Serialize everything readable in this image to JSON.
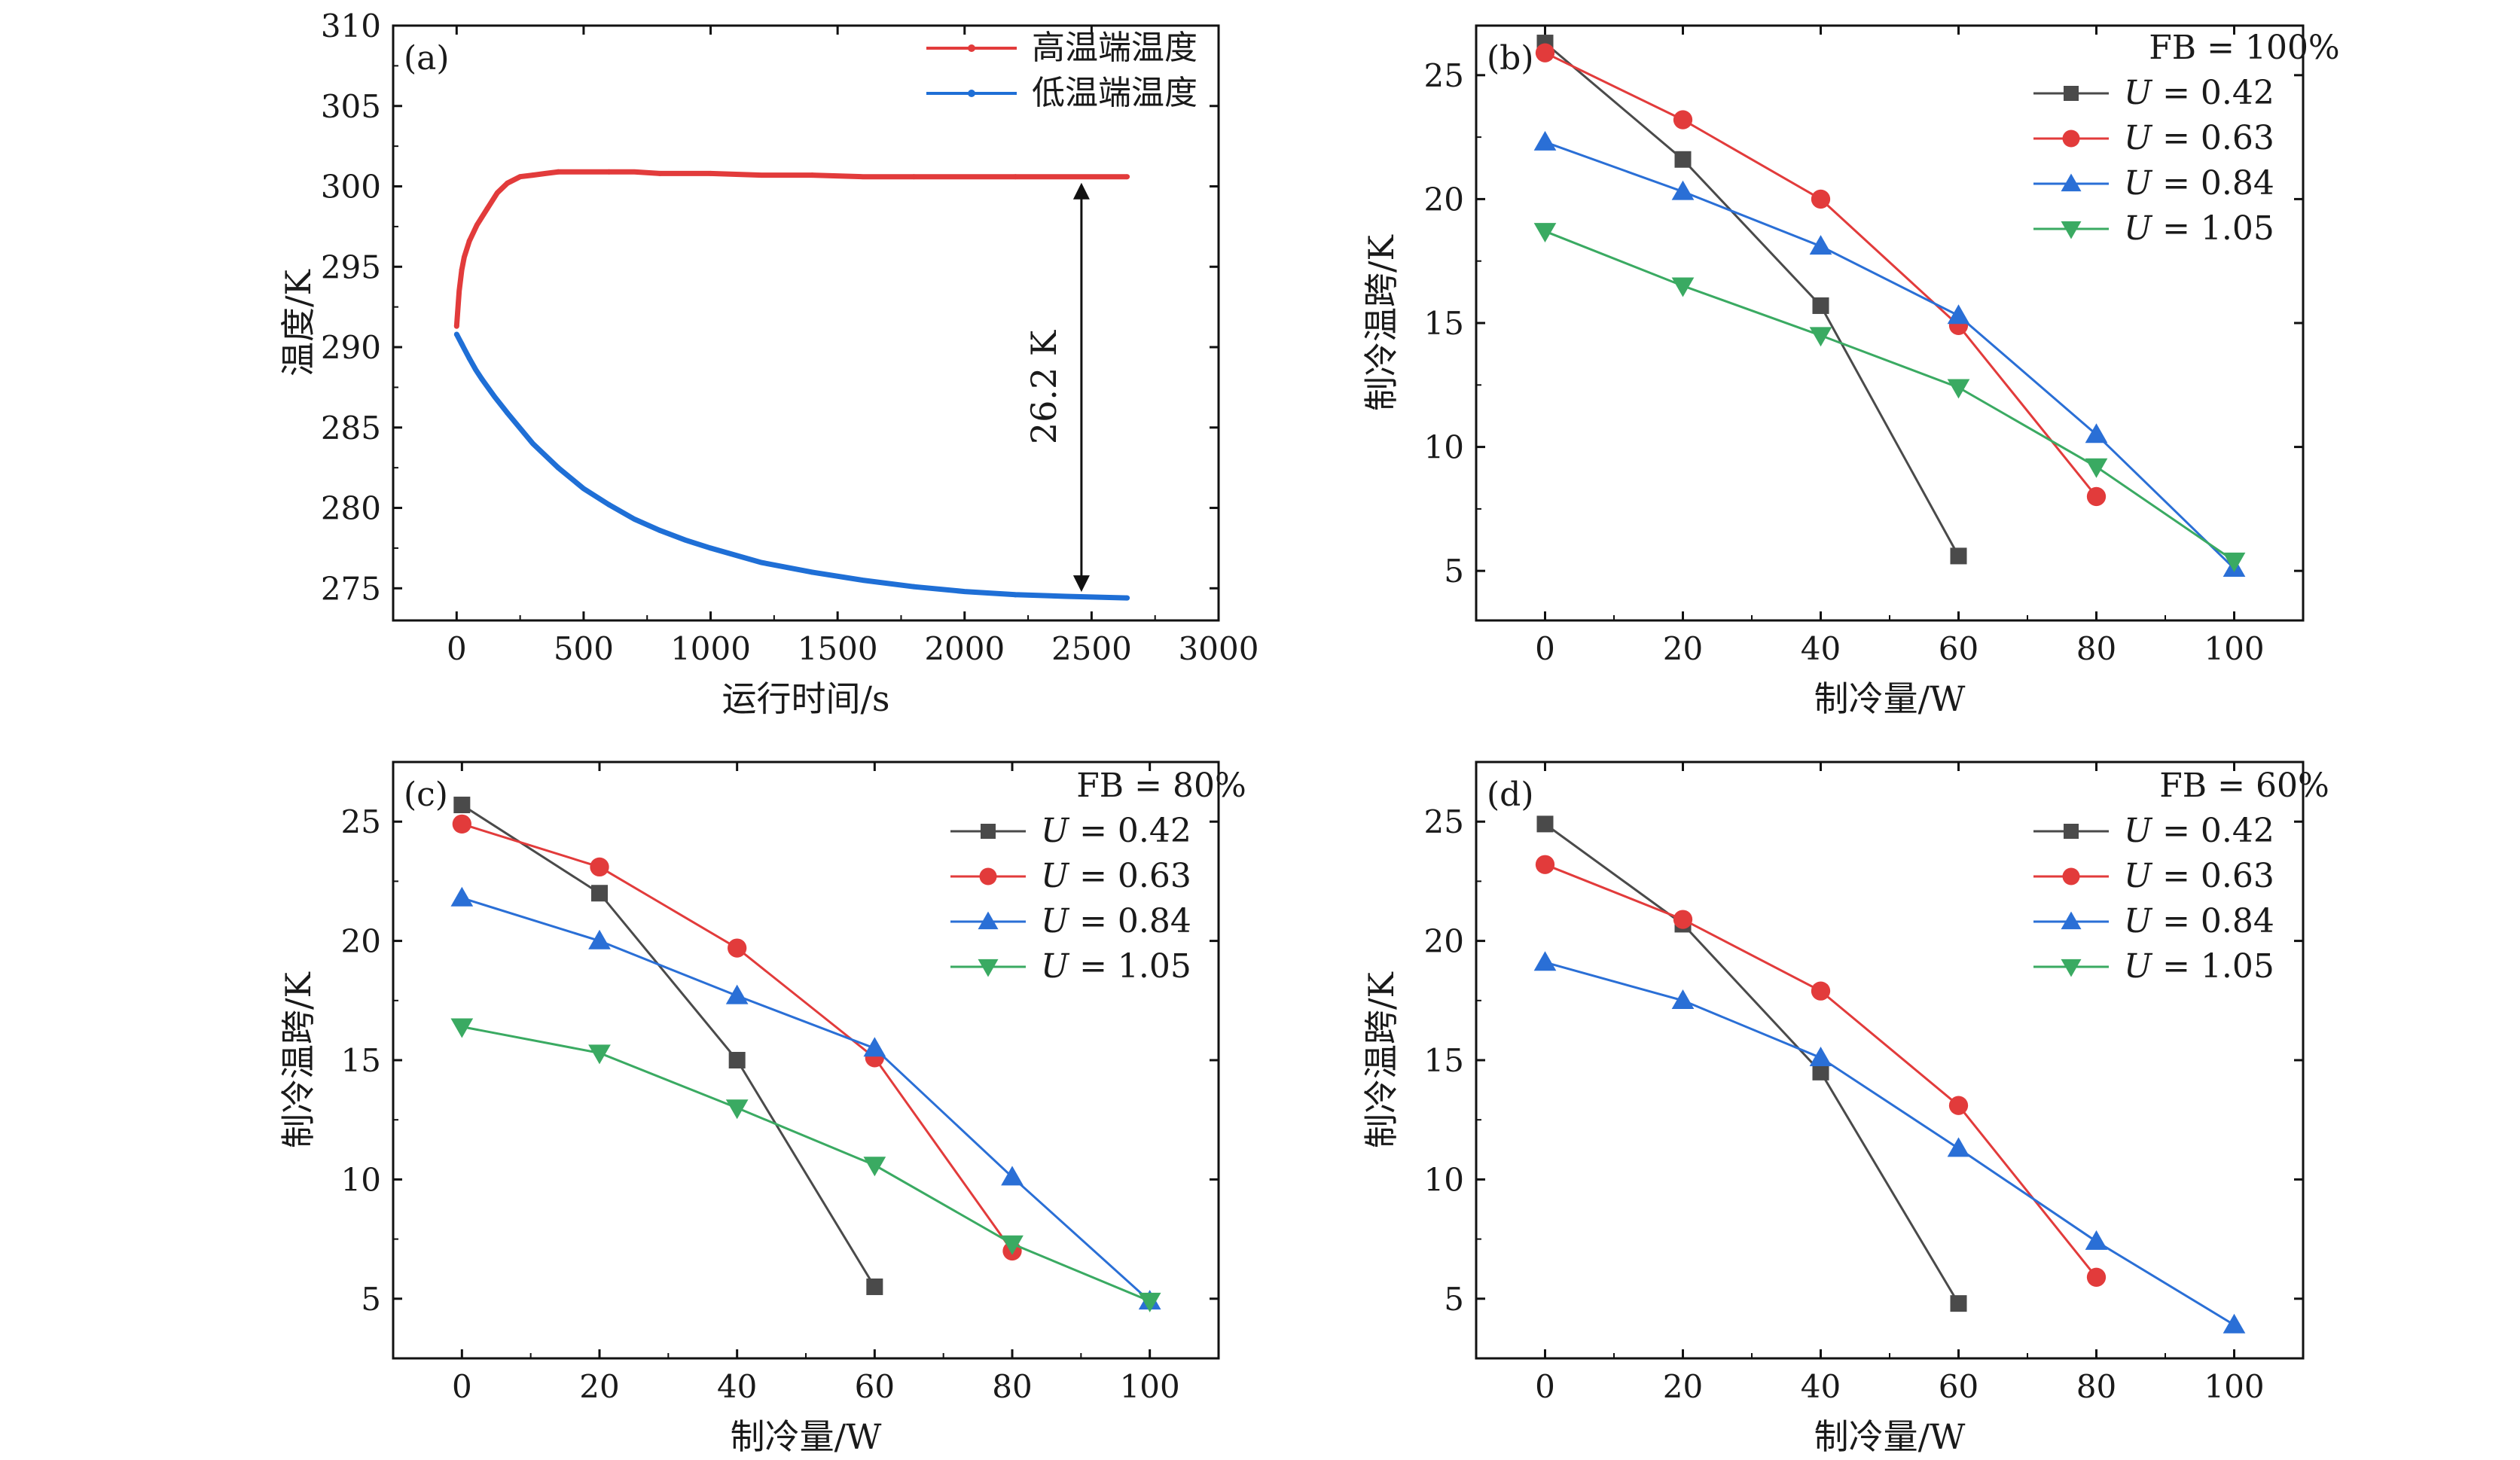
{
  "colors": {
    "black": "#4a4a4a",
    "red": "#e23b3b",
    "blue": "#2a6fd6",
    "green": "#3aaa62",
    "high": "#e23b3b",
    "low": "#1f6fd6"
  },
  "chart_data": [
    {
      "panel": "a",
      "panel_label": "(a)",
      "type": "line",
      "xlabel": "运行时间/s",
      "ylabel": "温度/K",
      "xlim": [
        -250,
        3000
      ],
      "ylim": [
        273,
        310
      ],
      "xticks": [
        0,
        500,
        1000,
        1500,
        2000,
        2500,
        3000
      ],
      "yticks": [
        275,
        280,
        285,
        290,
        295,
        300,
        305,
        310
      ],
      "series": [
        {
          "name": "高温端温度",
          "color": "high",
          "x": [
            0,
            10,
            20,
            30,
            50,
            80,
            120,
            160,
            200,
            250,
            300,
            350,
            400,
            500,
            600,
            700,
            800,
            900,
            1000,
            1200,
            1400,
            1600,
            1800,
            2000,
            2200,
            2400,
            2640
          ],
          "y": [
            291.3,
            293.5,
            294.8,
            295.6,
            296.6,
            297.6,
            298.6,
            299.6,
            300.2,
            300.6,
            300.7,
            300.8,
            300.9,
            300.9,
            300.9,
            300.9,
            300.8,
            300.8,
            300.8,
            300.7,
            300.7,
            300.6,
            300.6,
            300.6,
            300.6,
            300.6,
            300.6
          ]
        },
        {
          "name": "低温端温度",
          "color": "low",
          "x": [
            0,
            10,
            20,
            30,
            50,
            75,
            100,
            150,
            200,
            300,
            400,
            500,
            600,
            700,
            800,
            900,
            1000,
            1200,
            1400,
            1600,
            1800,
            2000,
            2200,
            2400,
            2640
          ],
          "y": [
            290.8,
            290.5,
            290.2,
            289.9,
            289.3,
            288.6,
            288.0,
            286.9,
            285.9,
            284.0,
            282.5,
            281.2,
            280.2,
            279.3,
            278.6,
            278.0,
            277.5,
            276.6,
            276.0,
            275.5,
            275.1,
            274.8,
            274.6,
            274.5,
            274.4
          ]
        }
      ],
      "annotation": {
        "text": "26.2 K",
        "x": 2460,
        "y_top": 300.6,
        "y_bottom": 274.4
      }
    },
    {
      "panel": "b",
      "panel_label": "(b)",
      "type": "line",
      "legend_title": "FB = 100%",
      "xlabel": "制冷量/W",
      "ylabel": "制冷温跨/K",
      "xlim": [
        -10,
        110
      ],
      "ylim": [
        3,
        27
      ],
      "xticks": [
        0,
        20,
        40,
        60,
        80,
        100
      ],
      "yticks": [
        5,
        10,
        15,
        20,
        25
      ],
      "series": [
        {
          "name": "U = 0.42",
          "color": "black",
          "marker": "square",
          "x": [
            0,
            20,
            40,
            60
          ],
          "y": [
            26.3,
            21.6,
            15.7,
            5.6
          ]
        },
        {
          "name": "U = 0.63",
          "color": "red",
          "marker": "circle",
          "x": [
            0,
            20,
            40,
            60,
            80
          ],
          "y": [
            25.9,
            23.2,
            20.0,
            14.9,
            8.0
          ]
        },
        {
          "name": "U = 0.84",
          "color": "blue",
          "marker": "triangle-up",
          "x": [
            0,
            20,
            40,
            60,
            80,
            100
          ],
          "y": [
            22.3,
            20.3,
            18.1,
            15.3,
            10.5,
            5.1
          ]
        },
        {
          "name": "U = 1.05",
          "color": "green",
          "marker": "triangle-down",
          "x": [
            0,
            20,
            40,
            60,
            80,
            100
          ],
          "y": [
            18.7,
            16.5,
            14.5,
            12.4,
            9.2,
            5.4
          ]
        }
      ]
    },
    {
      "panel": "c",
      "panel_label": "(c)",
      "type": "line",
      "legend_title": "FB = 80%",
      "xlabel": "制冷量/W",
      "ylabel": "制冷温跨/K",
      "xlim": [
        -10,
        110
      ],
      "ylim": [
        2.5,
        27.5
      ],
      "xticks": [
        0,
        20,
        40,
        60,
        80,
        100
      ],
      "yticks": [
        5,
        10,
        15,
        20,
        25
      ],
      "series": [
        {
          "name": "U = 0.42",
          "color": "black",
          "marker": "square",
          "x": [
            0,
            20,
            40,
            60
          ],
          "y": [
            25.7,
            22.0,
            15.0,
            5.5
          ]
        },
        {
          "name": "U = 0.63",
          "color": "red",
          "marker": "circle",
          "x": [
            0,
            20,
            40,
            60,
            80
          ],
          "y": [
            24.9,
            23.1,
            19.7,
            15.1,
            7.0
          ]
        },
        {
          "name": "U = 0.84",
          "color": "blue",
          "marker": "triangle-up",
          "x": [
            0,
            20,
            40,
            60,
            80,
            100
          ],
          "y": [
            21.8,
            20.0,
            17.7,
            15.5,
            10.1,
            4.9
          ]
        },
        {
          "name": "U = 1.05",
          "color": "green",
          "marker": "triangle-down",
          "x": [
            0,
            20,
            40,
            60,
            80,
            100
          ],
          "y": [
            16.4,
            15.3,
            13.0,
            10.6,
            7.3,
            4.9
          ]
        }
      ]
    },
    {
      "panel": "d",
      "panel_label": "(d)",
      "type": "line",
      "legend_title": "FB = 60%",
      "xlabel": "制冷量/W",
      "ylabel": "制冷温跨/K",
      "xlim": [
        -10,
        110
      ],
      "ylim": [
        2.5,
        27.5
      ],
      "xticks": [
        0,
        20,
        40,
        60,
        80,
        100
      ],
      "yticks": [
        5,
        10,
        15,
        20,
        25
      ],
      "series": [
        {
          "name": "U = 0.42",
          "color": "black",
          "marker": "square",
          "x": [
            0,
            20,
            40,
            60
          ],
          "y": [
            24.9,
            20.7,
            14.5,
            4.8
          ]
        },
        {
          "name": "U = 0.63",
          "color": "red",
          "marker": "circle",
          "x": [
            0,
            20,
            40,
            60,
            80
          ],
          "y": [
            23.2,
            20.9,
            17.9,
            13.1,
            5.9
          ]
        },
        {
          "name": "U = 0.84",
          "color": "blue",
          "marker": "triangle-up",
          "x": [
            0,
            20,
            40,
            60,
            80,
            100
          ],
          "y": [
            19.1,
            17.5,
            15.1,
            11.3,
            7.4,
            3.9
          ]
        },
        {
          "name": "U = 1.05",
          "color": "green",
          "marker": "triangle-down",
          "x": [],
          "y": []
        }
      ]
    }
  ]
}
